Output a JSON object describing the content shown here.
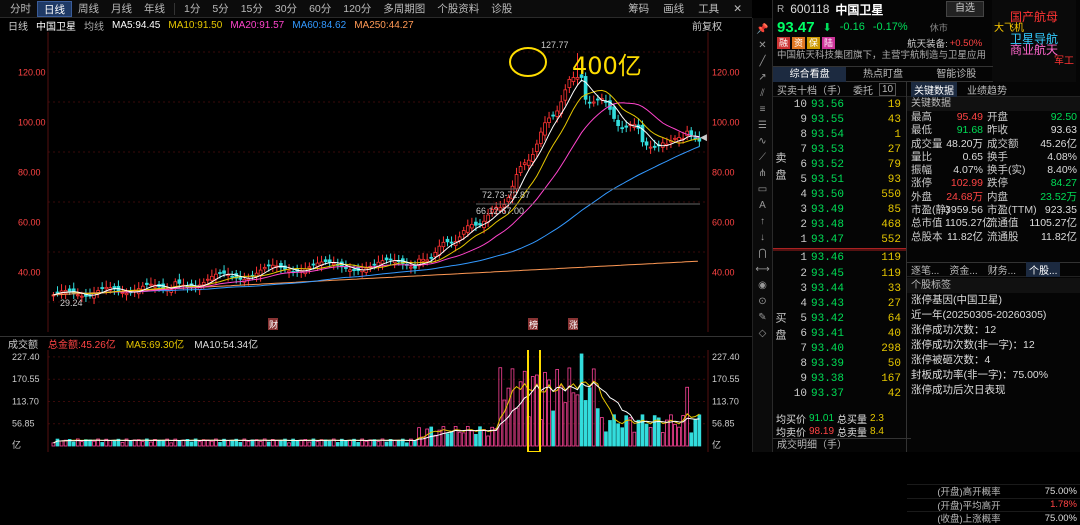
{
  "topbar": {
    "tabs": [
      "分时",
      "日线",
      "周线",
      "月线",
      "年线",
      "1分",
      "5分",
      "15分",
      "30分",
      "60分",
      "120分",
      "多周期图",
      "个股资料",
      "诊股"
    ],
    "active": 1,
    "right": [
      "筹码",
      "画线",
      "工具"
    ]
  },
  "ma": {
    "label": "日线",
    "name": "中国卫星",
    "type": "均线",
    "ma5": "MA5:94.45",
    "ma10": "MA10:91.50",
    "ma20": "MA20:91.57",
    "ma60": "MA60:84.62",
    "ma250": "MA250:44.27",
    "fq": "前复权"
  },
  "chart_data": {
    "type": "candlestick",
    "yticks": [
      120,
      100,
      80,
      60,
      40
    ],
    "high_label": "127.77",
    "low_label": "29.24",
    "annot1": "72.73-72.87",
    "annot2": "66.12-67.00",
    "handwriting": "400亿",
    "markers": [
      "财",
      "榜",
      "涨"
    ],
    "ma_colors": {
      "ma5": "#ffffff",
      "ma10": "#e6c700",
      "ma20": "#ff44cc",
      "ma60": "#3399ff",
      "ma250": "#ff9955"
    }
  },
  "volume": {
    "label": "成交额",
    "total": "总金额:45.26亿",
    "ma5": "MA5:69.30亿",
    "ma10": "MA10:54.34亿",
    "yticks": [
      "227.40",
      "170.55",
      "113.70",
      "56.85",
      "亿"
    ]
  },
  "stock": {
    "code": "600118",
    "name": "中国卫星",
    "prefix": "R",
    "btn": "自选",
    "price": "93.47",
    "chg": "-0.16",
    "pct": "-0.17%",
    "status": "休市",
    "badges": [
      "融",
      "资",
      "保",
      "陆"
    ],
    "company": "中国航天科技集团旗下，主营宇航制造与卫星应用",
    "sector": "航天装备:",
    "sector_pct": "+0.50%"
  },
  "sticker": [
    "国产航母",
    "大飞机",
    "卫星导航",
    "商业航天",
    "军工"
  ],
  "tabs": [
    "综合看盘",
    "热点盯盘",
    "智能诊股"
  ],
  "orderbook": {
    "head1": "买卖十档（手）",
    "head2": "委托",
    "head3": "10",
    "sell_label": "卖盘",
    "buy_label": "买盘",
    "sells": [
      [
        "10",
        "93.56",
        "19"
      ],
      [
        "9",
        "93.55",
        "43"
      ],
      [
        "8",
        "93.54",
        "1"
      ],
      [
        "7",
        "93.53",
        "27"
      ],
      [
        "6",
        "93.52",
        "79"
      ],
      [
        "5",
        "93.51",
        "93"
      ],
      [
        "4",
        "93.50",
        "550"
      ],
      [
        "3",
        "93.49",
        "85"
      ],
      [
        "2",
        "93.48",
        "468"
      ],
      [
        "1",
        "93.47",
        "552"
      ]
    ],
    "buys": [
      [
        "1",
        "93.46",
        "119"
      ],
      [
        "2",
        "93.45",
        "119"
      ],
      [
        "3",
        "93.44",
        "33"
      ],
      [
        "4",
        "93.43",
        "27"
      ],
      [
        "5",
        "93.42",
        "64"
      ],
      [
        "6",
        "93.41",
        "40"
      ],
      [
        "7",
        "93.40",
        "298"
      ],
      [
        "8",
        "93.39",
        "50"
      ],
      [
        "9",
        "93.38",
        "167"
      ],
      [
        "10",
        "93.37",
        "42"
      ]
    ],
    "avg_buy_k": "均买价",
    "avg_buy": "91.01",
    "tot_buy_k": "总买量",
    "tot_buy": "2.3",
    "avg_sell_k": "均卖价",
    "avg_sell": "98.19",
    "tot_sell_k": "总卖量",
    "tot_sell": "8.4",
    "tail": "成交明细（手）"
  },
  "info": {
    "tabs": [
      "关键数据",
      "业绩趋势"
    ],
    "title": "关键数据",
    "kv": [
      [
        "最高",
        "95.49",
        "开盘",
        "92.50"
      ],
      [
        "最低",
        "91.68",
        "昨收",
        "93.63"
      ],
      [
        "成交量",
        "48.20万",
        "成交额",
        "45.26亿"
      ],
      [
        "量比",
        "0.65",
        "换手",
        "4.08%"
      ],
      [
        "振幅",
        "4.07%",
        "换手(实)",
        "8.40%"
      ],
      [
        "涨停",
        "102.99",
        "跌停",
        "84.27"
      ],
      [
        "外盘",
        "24.68万",
        "内盘",
        "23.52万"
      ],
      [
        "市盈(静)",
        "3959.56",
        "市盈(TTM)",
        "923.35"
      ],
      [
        "总市值",
        "1105.27亿",
        "流通值",
        "1105.27亿"
      ],
      [
        "总股本",
        "11.82亿",
        "流通股",
        "11.82亿"
      ]
    ],
    "tabs3": [
      "逐笔...",
      "资金...",
      "财务...",
      "个股..."
    ],
    "profile_title": "个股标签",
    "lines": [
      "涨停基因(中国卫星)",
      "近一年(20250305-20260305)",
      "涨停成功次数：12",
      "涨停成功次数(非一字)：12",
      "涨停被砸次数：4",
      "封板成功率(非一字)：75.00%",
      "涨停成功后次日表现"
    ],
    "stats": [
      [
        "(开盘)高开概率",
        "75.00%"
      ],
      [
        "(开盘)平均高开",
        "1.78%"
      ],
      [
        "(收盘)上涨概率",
        "75.00%"
      ]
    ]
  }
}
